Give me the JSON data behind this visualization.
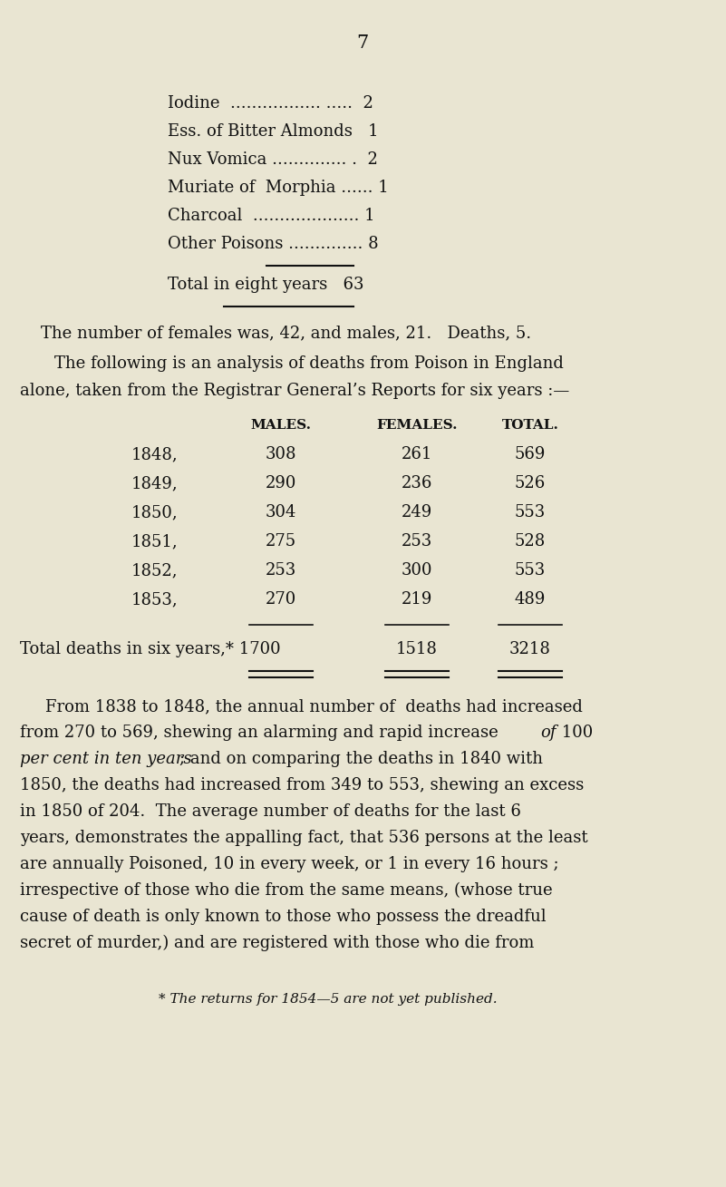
{
  "bg_color": "#e9e5d2",
  "text_color": "#111111",
  "page_number": "7",
  "poison_texts": [
    "Iodine  ................. .....  2",
    "Ess. of Bitter Almonds   1",
    "Nux Vomica .............. .  2",
    "Muriate of  Morphia ...... 1",
    "Charcoal  .................... 1",
    "Other Poisons .............. 8"
  ],
  "total_line": "Total in eight years   63",
  "line_females": "The number of females was, 42, and males, 21.   Deaths, 5.",
  "line_following1": "The following is an analysis of deaths from Poison in England",
  "line_following2": "alone, taken from the Registrar General’s Reports for six years :—",
  "table_headers": [
    "MALES.",
    "FEMALES.",
    "TOTAL."
  ],
  "table_rows": [
    [
      "1848,",
      "308",
      "261",
      "569"
    ],
    [
      "1849,",
      "290",
      "236",
      "526"
    ],
    [
      "1850,",
      "304",
      "249",
      "553"
    ],
    [
      "1851,",
      "275",
      "253",
      "528"
    ],
    [
      "1852,",
      "253",
      "300",
      "553"
    ],
    [
      "1853,",
      "270",
      "219",
      "489"
    ]
  ],
  "total_label": "Total deaths in six years,* 1700",
  "total_females": "1518",
  "total_total": "3218",
  "body_lines_normal": [
    "From 1838 to 1848, the annual number of  deaths had increased",
    "1850, the deaths had increased from 349 to 553, shewing an excess",
    "in 1850 of 204.  The average number of deaths for the last 6",
    "years, demonstrates the appalling fact, that 536 persons at the least",
    "are annually Poisoned, 10 in every week, or 1 in every 16 hours ;",
    "irrespective of those who die from the same means, (whose true",
    "cause of death is only known to those who possess the dreadful",
    "secret of murder,) and are registered with those who die from"
  ],
  "footnote": "* The returns for 1854—5 are not yet published."
}
